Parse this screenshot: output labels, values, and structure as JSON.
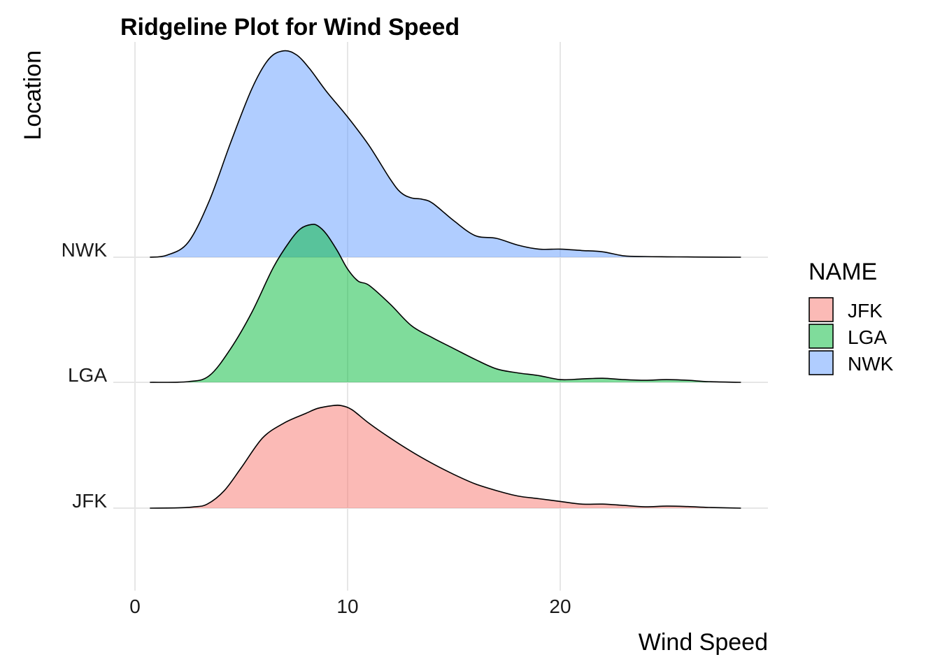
{
  "chart_data": {
    "type": "ridgeline",
    "title": "Ridgeline Plot for Wind Speed",
    "xlabel": "Wind Speed",
    "ylabel": "Location",
    "xlim": [
      -1,
      30
    ],
    "x_ticks": [
      0,
      10,
      20
    ],
    "grid": true,
    "legend": {
      "title": "NAME",
      "position": "right"
    },
    "categories": [
      "JFK",
      "LGA",
      "NWK"
    ],
    "series": [
      {
        "name": "JFK",
        "color": "#F8766D",
        "x": [
          0.7,
          2,
          2.8,
          3.4,
          4.2,
          5,
          6,
          7,
          8,
          8.6,
          9.3,
          9.7,
          10.2,
          11,
          12,
          13,
          14,
          15,
          16,
          17,
          18,
          19,
          20,
          21,
          22,
          23,
          24,
          25,
          26,
          27,
          28.5
        ],
        "density": [
          0,
          0.002,
          0.01,
          0.03,
          0.13,
          0.3,
          0.52,
          0.63,
          0.7,
          0.74,
          0.76,
          0.76,
          0.73,
          0.63,
          0.52,
          0.42,
          0.33,
          0.25,
          0.18,
          0.13,
          0.09,
          0.07,
          0.05,
          0.03,
          0.03,
          0.02,
          0.01,
          0.015,
          0.012,
          0.005,
          0
        ]
      },
      {
        "name": "LGA",
        "color": "#00BA38",
        "x": [
          0.7,
          2.5,
          3.5,
          4.5,
          5.5,
          6.5,
          7.3,
          7.8,
          8.3,
          8.6,
          9,
          9.5,
          10,
          10.5,
          11,
          12,
          13,
          14,
          15,
          16,
          17,
          18,
          19,
          20,
          21,
          22,
          23,
          24,
          25,
          26,
          27,
          28.5
        ],
        "density": [
          0,
          0.005,
          0.05,
          0.25,
          0.52,
          0.85,
          1.05,
          1.14,
          1.17,
          1.16,
          1.1,
          0.98,
          0.84,
          0.75,
          0.72,
          0.58,
          0.42,
          0.33,
          0.25,
          0.17,
          0.1,
          0.07,
          0.05,
          0.02,
          0.025,
          0.03,
          0.02,
          0.015,
          0.02,
          0.015,
          0.005,
          0
        ]
      },
      {
        "name": "NWK",
        "color": "#619CFF",
        "x": [
          0.7,
          1.5,
          2.5,
          3.5,
          4.5,
          5.5,
          6.3,
          7,
          7.6,
          8.2,
          9,
          10,
          11,
          12,
          12.5,
          13,
          13.5,
          14,
          15,
          16,
          17,
          18,
          19,
          20,
          21,
          22,
          23,
          24,
          25,
          26,
          27,
          28.5
        ],
        "density": [
          0,
          0.015,
          0.11,
          0.42,
          0.85,
          1.25,
          1.47,
          1.53,
          1.5,
          1.4,
          1.23,
          1.04,
          0.83,
          0.58,
          0.48,
          0.44,
          0.43,
          0.4,
          0.27,
          0.16,
          0.14,
          0.09,
          0.06,
          0.06,
          0.05,
          0.04,
          0.01,
          0.005,
          0.003,
          0.002,
          0.001,
          0
        ]
      }
    ]
  }
}
